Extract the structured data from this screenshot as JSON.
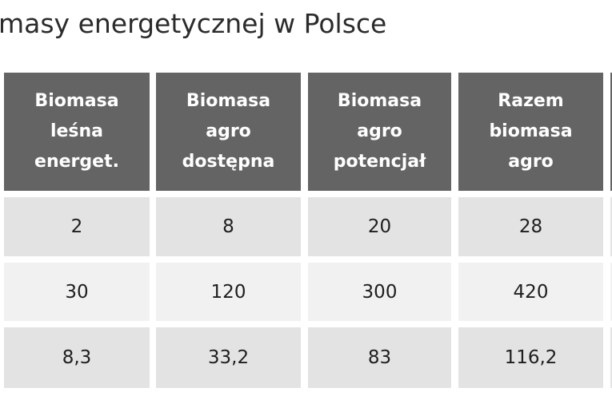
{
  "title": "masy energetycznej w Polsce",
  "table": {
    "headers": [
      "Biomasa\nleśna\nenerget.",
      "Biomasa\nagro\ndostępna",
      "Biomasa\nagro\npotencjał",
      "Razem\nbiomasa\nagro"
    ],
    "rows": [
      [
        "2",
        "8",
        "20",
        "28"
      ],
      [
        "30",
        "120",
        "300",
        "420"
      ],
      [
        "8,3",
        "33,2",
        "83",
        "116,2"
      ]
    ]
  },
  "colors": {
    "header_bg": "#656465",
    "header_text": "#ffffff",
    "row_shade_dark": "#e3e3e3",
    "row_shade_light": "#f1f1f1",
    "body_text": "#1e1e1e"
  }
}
